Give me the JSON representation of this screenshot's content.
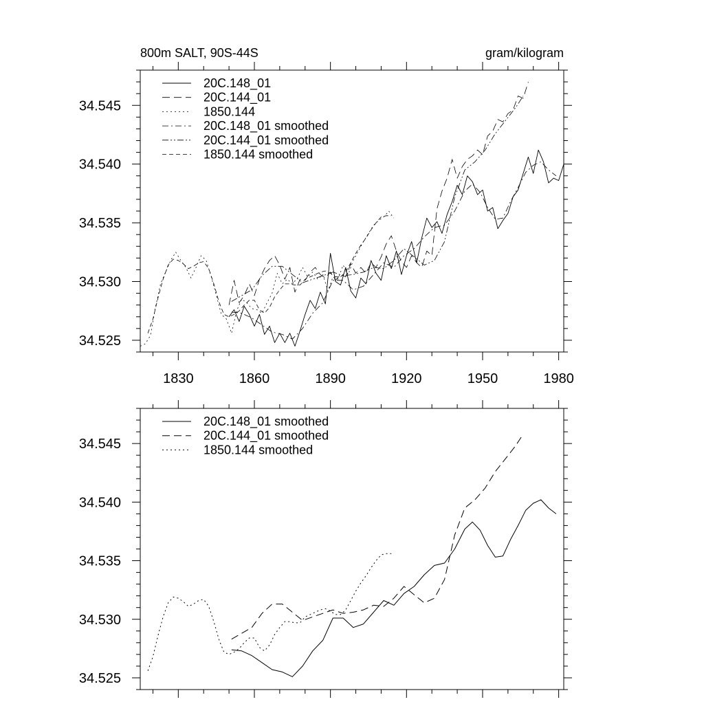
{
  "chart_data": [
    {
      "type": "line",
      "title_left": "800m SALT, 90S-44S",
      "title_right": "gram/kilogram",
      "xlabel": "",
      "ylabel": "",
      "xlim": [
        1815,
        1982
      ],
      "ylim": [
        34.524,
        34.548
      ],
      "x_ticks": [
        1830,
        1860,
        1890,
        1920,
        1950,
        1980
      ],
      "x_tick_labels": [
        "1830",
        "1860",
        "1890",
        "1920",
        "1950",
        "1980"
      ],
      "y_ticks": [
        34.525,
        34.53,
        34.535,
        34.54,
        34.545
      ],
      "y_tick_labels": [
        "34.525",
        "34.530",
        "34.535",
        "34.540",
        "34.545"
      ],
      "legend_position": "top-left",
      "series": [
        {
          "name": "20C.148_01",
          "style": "solid",
          "width": 0.9,
          "x": [
            1850,
            1852,
            1854,
            1856,
            1858,
            1860,
            1862,
            1864,
            1866,
            1868,
            1870,
            1872,
            1874,
            1876,
            1878,
            1880,
            1882,
            1884,
            1886,
            1888,
            1890,
            1892,
            1894,
            1896,
            1898,
            1900,
            1902,
            1904,
            1906,
            1908,
            1910,
            1912,
            1914,
            1916,
            1918,
            1920,
            1922,
            1924,
            1926,
            1928,
            1930,
            1932,
            1934,
            1936,
            1938,
            1940,
            1942,
            1944,
            1946,
            1948,
            1950,
            1952,
            1954,
            1956,
            1958,
            1960,
            1962,
            1964,
            1966,
            1968,
            1970,
            1972,
            1974,
            1976,
            1978,
            1980,
            1982
          ],
          "y": [
            34.527,
            34.5276,
            34.5266,
            34.5279,
            34.5272,
            34.5262,
            34.5272,
            34.5255,
            34.5262,
            34.5248,
            34.5256,
            34.5248,
            34.5256,
            34.5245,
            34.5258,
            34.5272,
            34.5284,
            34.5277,
            34.5291,
            34.5281,
            34.5324,
            34.53,
            34.5297,
            34.5312,
            34.5292,
            34.5286,
            34.5303,
            34.5298,
            34.5318,
            34.5307,
            34.5301,
            34.5322,
            34.5311,
            34.5326,
            34.5306,
            34.5322,
            34.5334,
            34.5316,
            34.5337,
            34.5354,
            34.5346,
            34.5351,
            34.5341,
            34.5357,
            34.5368,
            34.5382,
            34.5374,
            34.539,
            34.5385,
            34.5374,
            34.5378,
            34.536,
            34.5363,
            34.5345,
            34.5352,
            34.5358,
            34.5372,
            34.5378,
            34.5392,
            34.5406,
            34.5392,
            34.5412,
            34.5402,
            34.5384,
            34.5388,
            34.5386,
            34.54
          ]
        },
        {
          "name": "20C.144_01",
          "style": "longdash",
          "width": 0.8,
          "x": [
            1850,
            1852,
            1854,
            1856,
            1858,
            1860,
            1862,
            1864,
            1866,
            1868,
            1870,
            1872,
            1874,
            1876,
            1878,
            1880,
            1882,
            1884,
            1886,
            1888,
            1890,
            1892,
            1894,
            1896,
            1898,
            1900,
            1902,
            1904,
            1906,
            1908,
            1910,
            1912,
            1914,
            1916,
            1918,
            1920,
            1922,
            1924,
            1926,
            1928,
            1930,
            1932,
            1934,
            1936,
            1938,
            1940,
            1942,
            1944,
            1946,
            1948,
            1950,
            1952,
            1954,
            1956,
            1958,
            1960,
            1962,
            1964,
            1966,
            1968
          ],
          "y": [
            34.528,
            34.5301,
            34.5282,
            34.5288,
            34.5298,
            34.5288,
            34.5302,
            34.5311,
            34.5318,
            34.5322,
            34.5314,
            34.5302,
            34.5312,
            34.5291,
            34.5302,
            34.5301,
            34.5308,
            34.5312,
            34.5306,
            34.5303,
            34.5308,
            34.5301,
            34.5306,
            34.5304,
            34.5315,
            34.5307,
            34.5312,
            34.5307,
            34.5316,
            34.5312,
            34.5321,
            34.5332,
            34.5339,
            34.5326,
            34.5317,
            34.5312,
            34.5322,
            34.5316,
            34.5312,
            34.5326,
            34.5322,
            34.5362,
            34.5377,
            34.5388,
            34.5404,
            34.5388,
            34.5398,
            34.5404,
            34.5407,
            34.5412,
            34.5408,
            34.5424,
            34.5428,
            34.5438,
            34.5436,
            34.5443,
            34.5446,
            34.5458,
            34.5456,
            34.547
          ]
        },
        {
          "name": "1850.144",
          "style": "dotted",
          "width": 0.8,
          "x": [
            1815,
            1817,
            1819,
            1821,
            1823,
            1825,
            1827,
            1829,
            1831,
            1833,
            1835,
            1837,
            1839,
            1841,
            1843,
            1845,
            1847,
            1849,
            1851,
            1853,
            1855,
            1857,
            1859,
            1861,
            1863,
            1865,
            1867,
            1869,
            1871,
            1873,
            1875,
            1877,
            1879,
            1881,
            1883,
            1885,
            1887,
            1889,
            1891,
            1893,
            1895,
            1897,
            1899,
            1901,
            1903,
            1905,
            1907,
            1909,
            1911,
            1913,
            1915
          ],
          "y": [
            34.5245,
            34.5247,
            34.5254,
            34.5278,
            34.5298,
            34.5308,
            34.5318,
            34.5325,
            34.5318,
            34.5312,
            34.5303,
            34.5312,
            34.5322,
            34.5318,
            34.5304,
            34.5288,
            34.5272,
            34.5268,
            34.5256,
            34.5275,
            34.5285,
            34.5282,
            34.5277,
            34.5276,
            34.5273,
            34.5282,
            34.529,
            34.5307,
            34.5298,
            34.5302,
            34.5298,
            34.5303,
            34.5312,
            34.5304,
            34.5308,
            34.5302,
            34.5306,
            34.5292,
            34.5304,
            34.5302,
            34.5314,
            34.5306,
            34.5318,
            34.5326,
            34.5334,
            34.5341,
            34.5348,
            34.5352,
            34.5355,
            34.536,
            34.5354
          ]
        },
        {
          "name": "20C.148_01 smoothed",
          "style": "dashdot",
          "width": 0.8,
          "x": [
            1851,
            1855,
            1859,
            1863,
            1867,
            1871,
            1875,
            1879,
            1883,
            1887,
            1891,
            1895,
            1899,
            1903,
            1907,
            1911,
            1915,
            1919,
            1923,
            1927,
            1931,
            1935,
            1939,
            1943,
            1946,
            1949,
            1952,
            1955,
            1958,
            1961,
            1964,
            1967,
            1970,
            1973,
            1976,
            1979
          ],
          "y": [
            34.5274,
            34.5273,
            34.5269,
            34.5263,
            34.5257,
            34.5255,
            34.5251,
            34.526,
            34.5273,
            34.5282,
            34.5301,
            34.5301,
            34.5293,
            34.5296,
            34.5306,
            34.5316,
            34.5312,
            34.5322,
            34.5328,
            34.5338,
            34.5346,
            34.5348,
            34.536,
            34.5377,
            34.5383,
            34.5376,
            34.5363,
            34.5353,
            34.5354,
            34.5368,
            34.538,
            34.5393,
            34.5399,
            34.5402,
            34.5395,
            34.539
          ]
        },
        {
          "name": "20C.144_01 smoothed",
          "style": "dashdotdot",
          "width": 0.8,
          "x": [
            1851,
            1855,
            1859,
            1863,
            1867,
            1871,
            1875,
            1879,
            1883,
            1887,
            1891,
            1895,
            1899,
            1903,
            1907,
            1911,
            1915,
            1919,
            1923,
            1927,
            1931,
            1935,
            1939,
            1943,
            1947,
            1951,
            1955,
            1959,
            1963,
            1966
          ],
          "y": [
            34.5283,
            34.5288,
            34.5293,
            34.5305,
            34.5313,
            34.5313,
            34.5306,
            34.5299,
            34.5302,
            34.5305,
            34.5308,
            34.5305,
            34.5306,
            34.5308,
            34.5312,
            34.5311,
            34.5318,
            34.5328,
            34.5321,
            34.5314,
            34.5318,
            34.5334,
            34.5372,
            34.5395,
            34.5402,
            34.5412,
            34.5426,
            34.5437,
            34.5448,
            34.5458
          ]
        },
        {
          "name": "1850.144 smoothed",
          "style": "shortdash",
          "width": 0.8,
          "x": [
            1818,
            1820,
            1822,
            1824,
            1826,
            1828,
            1830,
            1832,
            1834,
            1836,
            1838,
            1840,
            1842,
            1844,
            1846,
            1848,
            1850,
            1852,
            1854,
            1856,
            1858,
            1860,
            1862,
            1864,
            1866,
            1868,
            1870,
            1872,
            1874,
            1876,
            1878,
            1880,
            1882,
            1884,
            1886,
            1888,
            1890,
            1892,
            1894,
            1896,
            1898,
            1900,
            1902,
            1904,
            1906,
            1908,
            1910,
            1912,
            1914
          ],
          "y": [
            34.5256,
            34.5268,
            34.5286,
            34.5302,
            34.5314,
            34.5319,
            34.5318,
            34.5315,
            34.5311,
            34.5313,
            34.5316,
            34.5317,
            34.5311,
            34.5298,
            34.5283,
            34.5272,
            34.527,
            34.5272,
            34.5275,
            34.528,
            34.5284,
            34.5284,
            34.5276,
            34.5273,
            34.5278,
            34.5287,
            34.5293,
            34.5298,
            34.5298,
            34.5297,
            34.5297,
            34.5302,
            34.5304,
            34.5306,
            34.5308,
            34.5309,
            34.5307,
            34.5304,
            34.5304,
            34.5308,
            34.5316,
            34.5324,
            34.5331,
            34.5337,
            34.5344,
            34.535,
            34.5355,
            34.5356,
            34.5356
          ]
        }
      ]
    },
    {
      "type": "line",
      "title_left": "",
      "title_right": "",
      "xlabel": "",
      "ylabel": "",
      "xlim": [
        1815,
        1982
      ],
      "ylim": [
        34.524,
        34.548
      ],
      "x_ticks": [
        1830,
        1860,
        1890,
        1920,
        1950,
        1980
      ],
      "x_tick_labels": [],
      "y_ticks": [
        34.525,
        34.53,
        34.535,
        34.54,
        34.545
      ],
      "y_tick_labels": [
        "34.525",
        "34.530",
        "34.535",
        "34.540",
        "34.545"
      ],
      "legend_position": "top-left",
      "series": [
        {
          "name": "20C.148_01 smoothed",
          "style": "solid",
          "width": 1,
          "x": [
            1851,
            1855,
            1859,
            1863,
            1867,
            1871,
            1875,
            1879,
            1883,
            1887,
            1891,
            1895,
            1899,
            1903,
            1907,
            1911,
            1915,
            1919,
            1923,
            1927,
            1931,
            1935,
            1939,
            1943,
            1946,
            1949,
            1952,
            1955,
            1958,
            1961,
            1964,
            1967,
            1970,
            1973,
            1976,
            1979
          ],
          "y": [
            34.5274,
            34.5273,
            34.5269,
            34.5263,
            34.5257,
            34.5255,
            34.5251,
            34.526,
            34.5273,
            34.5282,
            34.5301,
            34.5301,
            34.5293,
            34.5296,
            34.5306,
            34.5316,
            34.5312,
            34.5322,
            34.5328,
            34.5338,
            34.5346,
            34.5348,
            34.536,
            34.5377,
            34.5383,
            34.5376,
            34.5363,
            34.5353,
            34.5354,
            34.5368,
            34.538,
            34.5393,
            34.5399,
            34.5402,
            34.5395,
            34.539
          ]
        },
        {
          "name": "20C.144_01 smoothed",
          "style": "longdash",
          "width": 1,
          "x": [
            1851,
            1855,
            1859,
            1863,
            1867,
            1871,
            1875,
            1879,
            1883,
            1887,
            1891,
            1895,
            1899,
            1903,
            1907,
            1911,
            1915,
            1919,
            1923,
            1927,
            1931,
            1935,
            1939,
            1943,
            1947,
            1951,
            1955,
            1959,
            1963,
            1966
          ],
          "y": [
            34.5283,
            34.5288,
            34.5293,
            34.5305,
            34.5313,
            34.5313,
            34.5306,
            34.5299,
            34.5302,
            34.5305,
            34.5308,
            34.5305,
            34.5306,
            34.5308,
            34.5312,
            34.5311,
            34.5318,
            34.5328,
            34.5321,
            34.5314,
            34.5318,
            34.5334,
            34.5372,
            34.5395,
            34.5402,
            34.5412,
            34.5426,
            34.5437,
            34.5448,
            34.5458
          ]
        },
        {
          "name": "1850.144 smoothed",
          "style": "dotted",
          "width": 1,
          "x": [
            1818,
            1820,
            1822,
            1824,
            1826,
            1828,
            1830,
            1832,
            1834,
            1836,
            1838,
            1840,
            1842,
            1844,
            1846,
            1848,
            1850,
            1852,
            1854,
            1856,
            1858,
            1860,
            1862,
            1864,
            1866,
            1868,
            1870,
            1872,
            1874,
            1876,
            1878,
            1880,
            1882,
            1884,
            1886,
            1888,
            1890,
            1892,
            1894,
            1896,
            1898,
            1900,
            1902,
            1904,
            1906,
            1908,
            1910,
            1912,
            1914
          ],
          "y": [
            34.5256,
            34.5268,
            34.5286,
            34.5302,
            34.5314,
            34.5319,
            34.5318,
            34.5315,
            34.5311,
            34.5313,
            34.5316,
            34.5317,
            34.5311,
            34.5298,
            34.5283,
            34.5272,
            34.527,
            34.5272,
            34.5275,
            34.528,
            34.5284,
            34.5284,
            34.5276,
            34.5273,
            34.5278,
            34.5287,
            34.5293,
            34.5298,
            34.5298,
            34.5297,
            34.5297,
            34.5302,
            34.5304,
            34.5306,
            34.5308,
            34.5309,
            34.5307,
            34.5304,
            34.5304,
            34.5308,
            34.5316,
            34.5324,
            34.5331,
            34.5337,
            34.5344,
            34.535,
            34.5355,
            34.5356,
            34.5356
          ]
        }
      ]
    }
  ]
}
